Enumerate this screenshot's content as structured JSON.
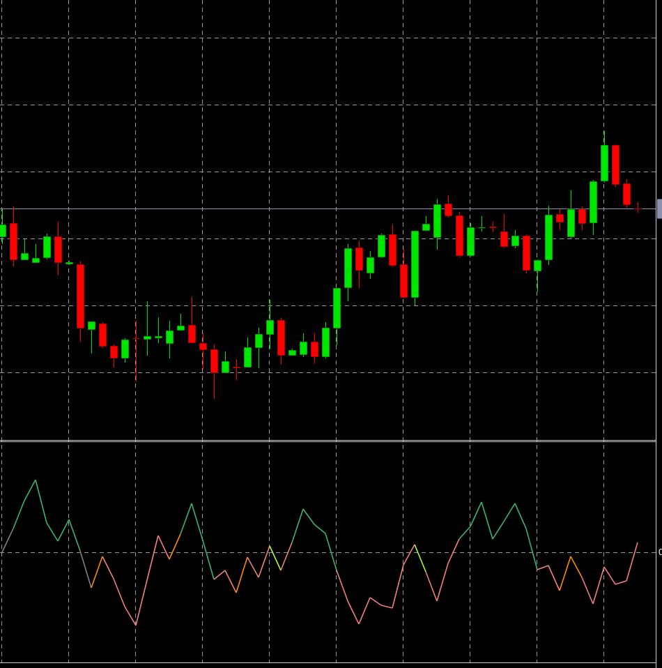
{
  "chart_data": [
    {
      "type": "candlestick",
      "open": [
        291,
        311,
        258,
        254,
        261,
        292,
        252,
        252,
        158,
        167,
        135,
        117,
        146,
        144,
        146,
        138,
        157,
        165,
        139,
        130,
        96,
        105,
        104,
        132,
        151,
        172,
        121,
        122,
        141,
        119,
        160,
        218,
        276,
        239,
        262,
        295,
        252,
        204,
        300,
        290,
        339,
        322,
        264,
        304,
        306,
        299,
        278,
        293,
        242,
        258,
        324,
        291,
        331,
        311,
        371,
        423,
        368,
        332
      ],
      "high": [
        331,
        335,
        288,
        281,
        296,
        313,
        257,
        256,
        170,
        169,
        137,
        146,
        171,
        199,
        176,
        171,
        181,
        205,
        153,
        137,
        127,
        116,
        147,
        161,
        201,
        175,
        131,
        153,
        153,
        169,
        218,
        281,
        285,
        271,
        296,
        309,
        274,
        300,
        321,
        346,
        351,
        327,
        311,
        321,
        313,
        324,
        301,
        295,
        259,
        336,
        331,
        358,
        335,
        373,
        443,
        424,
        374,
        341
      ],
      "low": [
        281,
        249,
        258,
        254,
        259,
        236,
        251,
        141,
        124,
        132,
        104,
        111,
        84,
        121,
        139,
        117,
        156,
        138,
        101,
        59,
        96,
        86,
        104,
        103,
        131,
        108,
        121,
        119,
        110,
        117,
        136,
        199,
        218,
        231,
        261,
        248,
        203,
        193,
        299,
        273,
        319,
        262,
        263,
        299,
        298,
        275,
        275,
        239,
        213,
        251,
        301,
        289,
        301,
        294,
        369,
        363,
        333,
        326
      ],
      "close": [
        309,
        258,
        268,
        261,
        292,
        254,
        255,
        160,
        170,
        134,
        117,
        144,
        145,
        149,
        149,
        157,
        164,
        139,
        129,
        96,
        113,
        103,
        133,
        152,
        172,
        121,
        129,
        141,
        119,
        161,
        218,
        275,
        243,
        262,
        294,
        250,
        204,
        300,
        310,
        338,
        321,
        264,
        305,
        305,
        304,
        277,
        293,
        243,
        258,
        323,
        312,
        331,
        310,
        371,
        423,
        366,
        337,
        331
      ],
      "up_color": "#00e600",
      "down_color": "#ff0000",
      "ylim": [
        0,
        631
      ],
      "ygrid": [
        96,
        192,
        288,
        384,
        480,
        576
      ],
      "current_price": 332,
      "current_price_color": "#8e90b0"
    },
    {
      "type": "line",
      "values": [
        0,
        34,
        74,
        104,
        42,
        16,
        47,
        2,
        -51,
        -6,
        -38,
        -78,
        -105,
        -40,
        24,
        -10,
        26,
        70,
        17,
        -39,
        -26,
        -58,
        -7,
        -36,
        9,
        -26,
        14,
        62,
        40,
        27,
        -26,
        -70,
        -103,
        -65,
        -76,
        -80,
        -18,
        11,
        -28,
        -70,
        -16,
        19,
        37,
        72,
        19,
        44,
        70,
        34,
        -25,
        -19,
        -55,
        -6,
        -36,
        -74,
        -21,
        -46,
        -41,
        14
      ],
      "segment_colors": [
        "#808080",
        "#3cb371",
        "#3cb371",
        "#3cb371",
        "#3cb371",
        "#3cb371",
        "#3cb371",
        "#808080",
        "#ff8c00",
        "#f08080",
        "#f08080",
        "#f08080",
        "#f08080",
        "#f08080",
        "#f08080",
        "#ff8c00",
        "#3cb371",
        "#3cb371",
        "#3cb371",
        "#f08080",
        "#f08080",
        "#ff8c00",
        "#f08080",
        "#f08080",
        "#adff2f",
        "#f08080",
        "#3cb371",
        "#3cb371",
        "#3cb371",
        "#3cb371",
        "#f08080",
        "#f08080",
        "#f08080",
        "#f08080",
        "#f08080",
        "#f08080",
        "#f08080",
        "#adff2f",
        "#f08080",
        "#f08080",
        "#f08080",
        "#3cb371",
        "#3cb371",
        "#3cb371",
        "#3cb371",
        "#3cb371",
        "#3cb371",
        "#3cb371",
        "#f08080",
        "#f08080",
        "#ff8c00",
        "#ff8c00",
        "#f08080",
        "#f08080",
        "#f08080",
        "#f08080",
        "#f08080"
      ],
      "ylim": [
        -158,
        159
      ],
      "yticks": [
        0
      ]
    }
  ]
}
